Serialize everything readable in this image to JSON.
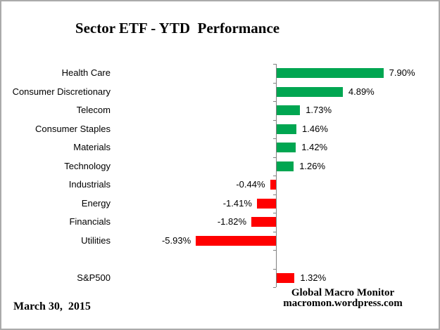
{
  "chart_data": {
    "type": "bar",
    "orientation": "horizontal",
    "title": "Sector ETF - YTD  Performance",
    "xlabel": "",
    "ylabel": "",
    "grid": false,
    "legend": "none",
    "value_suffix": "%",
    "colors": {
      "green": "#00A651",
      "red": "#FF0000",
      "axis": "#808080"
    },
    "items": [
      {
        "label": "Health Care",
        "value": 7.9,
        "display": "7.90%",
        "color": "green"
      },
      {
        "label": "Consumer Discretionary",
        "value": 4.89,
        "display": "4.89%",
        "color": "green"
      },
      {
        "label": "Telecom",
        "value": 1.73,
        "display": "1.73%",
        "color": "green"
      },
      {
        "label": "Consumer Staples",
        "value": 1.46,
        "display": "1.46%",
        "color": "green"
      },
      {
        "label": "Materials",
        "value": 1.42,
        "display": "1.42%",
        "color": "green"
      },
      {
        "label": "Technology",
        "value": 1.26,
        "display": "1.26%",
        "color": "green"
      },
      {
        "label": "Industrials",
        "value": -0.44,
        "display": "-0.44%",
        "color": "red"
      },
      {
        "label": "Energy",
        "value": -1.41,
        "display": "-1.41%",
        "color": "red"
      },
      {
        "label": "Financials",
        "value": -1.82,
        "display": "-1.82%",
        "color": "red"
      },
      {
        "label": "Utilities",
        "value": -5.93,
        "display": "-5.93%",
        "color": "red"
      },
      {
        "label": "S&P500",
        "value": 1.32,
        "display": "1.32%",
        "color": "red",
        "gap_before": true
      }
    ]
  },
  "footer": {
    "date": "March 30,  2015",
    "source_line1": "Global Macro Monitor",
    "source_line2": "macromon.wordpress.com"
  }
}
